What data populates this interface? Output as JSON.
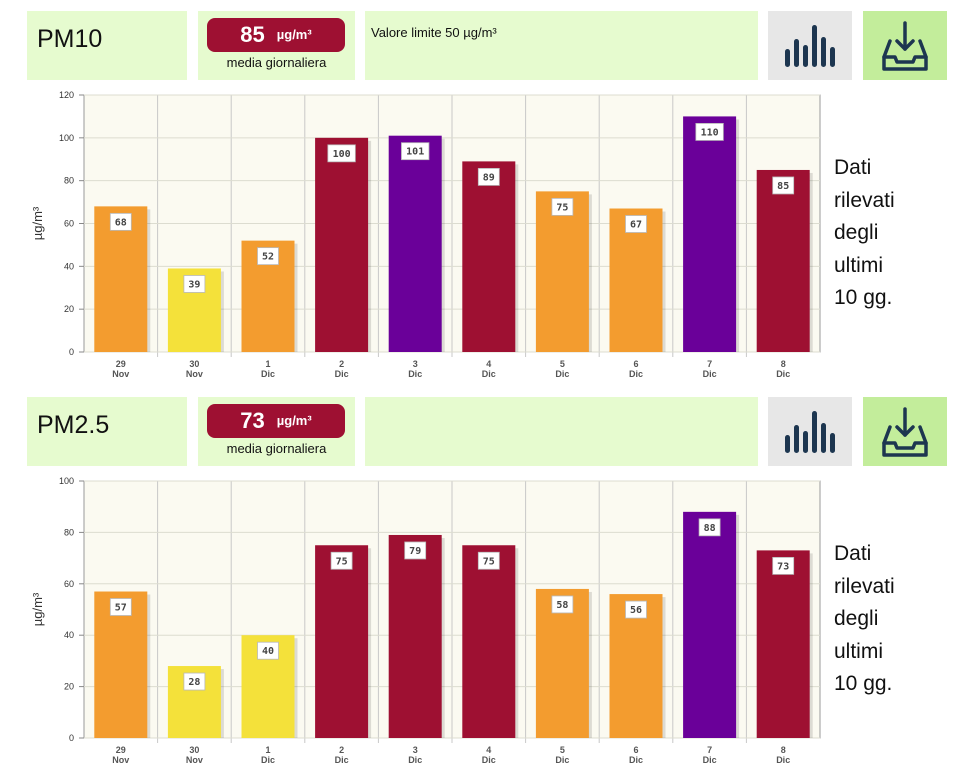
{
  "colors": {
    "orange": "#f39c2f",
    "yellow": "#f4e13a",
    "crimson": "#9e1032",
    "purple": "#6a0099",
    "panel": "#e6fbcf",
    "plot_bg": "#fbfaf1"
  },
  "panels": [
    {
      "title": "PM10",
      "daily_value": "85",
      "unit": "µg/m³",
      "daily_label": "media giornaliera",
      "limit_text": "Valore limite 50 µg/m³",
      "side_text": [
        "Dati",
        "rilevati",
        "degli",
        "ultimi",
        "10 gg."
      ],
      "chart_icon": "bar-chart-icon",
      "download_icon": "download-tray-icon"
    },
    {
      "title": "PM2.5",
      "daily_value": "73",
      "unit": "µg/m³",
      "daily_label": "media giornaliera",
      "limit_text": "",
      "side_text": [
        "Dati",
        "rilevati",
        "degli",
        "ultimi",
        "10 gg."
      ],
      "chart_icon": "bar-chart-icon",
      "download_icon": "download-tray-icon"
    }
  ],
  "chart_data": [
    {
      "type": "bar",
      "title": "PM10",
      "ylabel": "µg/m³",
      "xlabel": "",
      "ylim": [
        0,
        120
      ],
      "yticks": [
        0,
        20,
        40,
        60,
        80,
        100,
        120
      ],
      "categories": [
        [
          "29",
          "Nov"
        ],
        [
          "30",
          "Nov"
        ],
        [
          "1",
          "Dic"
        ],
        [
          "2",
          "Dic"
        ],
        [
          "3",
          "Dic"
        ],
        [
          "4",
          "Dic"
        ],
        [
          "5",
          "Dic"
        ],
        [
          "6",
          "Dic"
        ],
        [
          "7",
          "Dic"
        ],
        [
          "8",
          "Dic"
        ]
      ],
      "values": [
        68,
        39,
        52,
        100,
        101,
        89,
        75,
        67,
        110,
        85
      ],
      "bar_colors": [
        "orange",
        "yellow",
        "orange",
        "crimson",
        "purple",
        "crimson",
        "orange",
        "orange",
        "purple",
        "crimson"
      ],
      "grid": true
    },
    {
      "type": "bar",
      "title": "PM2.5",
      "ylabel": "µg/m³",
      "xlabel": "",
      "ylim": [
        0,
        100
      ],
      "yticks": [
        0,
        20,
        40,
        60,
        80,
        100
      ],
      "categories": [
        [
          "29",
          "Nov"
        ],
        [
          "30",
          "Nov"
        ],
        [
          "1",
          "Dic"
        ],
        [
          "2",
          "Dic"
        ],
        [
          "3",
          "Dic"
        ],
        [
          "4",
          "Dic"
        ],
        [
          "5",
          "Dic"
        ],
        [
          "6",
          "Dic"
        ],
        [
          "7",
          "Dic"
        ],
        [
          "8",
          "Dic"
        ]
      ],
      "values": [
        57,
        28,
        40,
        75,
        79,
        75,
        58,
        56,
        88,
        73
      ],
      "bar_colors": [
        "orange",
        "yellow",
        "yellow",
        "crimson",
        "crimson",
        "crimson",
        "orange",
        "orange",
        "purple",
        "crimson"
      ],
      "grid": true
    }
  ]
}
